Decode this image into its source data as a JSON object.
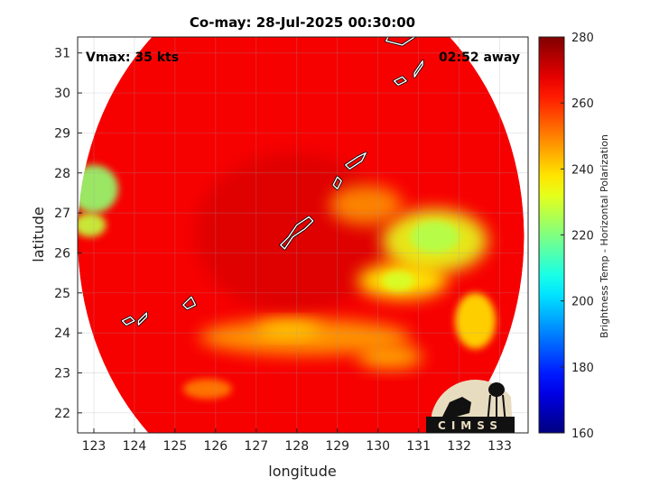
{
  "chart_data": {
    "type": "heatmap",
    "title": "Co-may: 28-Jul-2025 00:30:00",
    "annotations": {
      "vmax": "Vmax: 35 kts",
      "eta": "02:52 away"
    },
    "xlabel": "longitude",
    "ylabel": "latitude",
    "xlim": [
      122.6,
      133.7
    ],
    "ylim": [
      21.5,
      31.4
    ],
    "xticks": [
      123,
      124,
      125,
      126,
      127,
      128,
      129,
      130,
      131,
      132,
      133
    ],
    "yticks": [
      22,
      23,
      24,
      25,
      26,
      27,
      28,
      29,
      30,
      31
    ],
    "grid": true,
    "swath": {
      "center": [
        128.1,
        26.4
      ],
      "radius_deg": 5.5
    },
    "colorbar": {
      "label": "Brightness Temp - Horizontal Polarization",
      "range": [
        160,
        280
      ],
      "ticks": [
        160,
        180,
        200,
        220,
        240,
        260,
        280
      ],
      "colormap": "jet"
    },
    "features": [
      {
        "name": "warm-background",
        "lon": 128.0,
        "lat": 26.4,
        "rx": 5.5,
        "ry": 5.0,
        "temp": 264
      },
      {
        "name": "band-east",
        "lon": 131.4,
        "lat": 26.3,
        "rx": 1.3,
        "ry": 0.8,
        "temp": 232
      },
      {
        "name": "band-east-core",
        "lon": 131.4,
        "lat": 26.4,
        "rx": 0.6,
        "ry": 0.4,
        "temp": 226
      },
      {
        "name": "band-south-east",
        "lon": 130.6,
        "lat": 25.3,
        "rx": 1.1,
        "ry": 0.45,
        "temp": 236
      },
      {
        "name": "band-south-east-core",
        "lon": 130.5,
        "lat": 25.3,
        "rx": 0.4,
        "ry": 0.25,
        "temp": 230
      },
      {
        "name": "band-south",
        "lon": 128.2,
        "lat": 23.9,
        "rx": 2.6,
        "ry": 0.45,
        "temp": 246
      },
      {
        "name": "band-south-core",
        "lon": 127.8,
        "lat": 24.1,
        "rx": 0.8,
        "ry": 0.2,
        "temp": 240
      },
      {
        "name": "band-east-tail",
        "lon": 132.4,
        "lat": 24.3,
        "rx": 0.5,
        "ry": 0.7,
        "temp": 238
      },
      {
        "name": "west-edge-cell",
        "lon": 123.0,
        "lat": 27.6,
        "rx": 0.6,
        "ry": 0.6,
        "temp": 222
      },
      {
        "name": "west-edge-cell-2",
        "lon": 122.9,
        "lat": 26.7,
        "rx": 0.4,
        "ry": 0.3,
        "temp": 228
      },
      {
        "name": "north-east-cell",
        "lon": 129.7,
        "lat": 27.2,
        "rx": 0.9,
        "ry": 0.5,
        "temp": 248
      },
      {
        "name": "south-west-cell",
        "lon": 125.8,
        "lat": 22.6,
        "rx": 0.6,
        "ry": 0.25,
        "temp": 250
      },
      {
        "name": "south-cell",
        "lon": 130.3,
        "lat": 23.4,
        "rx": 0.8,
        "ry": 0.3,
        "temp": 244
      }
    ],
    "coastlines": [
      {
        "name": "okinawa",
        "points": [
          [
            127.7,
            26.1
          ],
          [
            127.9,
            26.4
          ],
          [
            128.2,
            26.6
          ],
          [
            128.4,
            26.8
          ],
          [
            128.3,
            26.9
          ],
          [
            128.0,
            26.7
          ],
          [
            127.8,
            26.4
          ],
          [
            127.6,
            26.2
          ]
        ]
      },
      {
        "name": "amami",
        "points": [
          [
            129.2,
            28.2
          ],
          [
            129.5,
            28.4
          ],
          [
            129.7,
            28.5
          ],
          [
            129.6,
            28.3
          ],
          [
            129.3,
            28.1
          ]
        ]
      },
      {
        "name": "tokunoshima",
        "points": [
          [
            128.9,
            27.7
          ],
          [
            129.0,
            27.9
          ],
          [
            129.1,
            27.8
          ],
          [
            129.0,
            27.6
          ]
        ]
      },
      {
        "name": "yakushima",
        "points": [
          [
            130.4,
            30.3
          ],
          [
            130.6,
            30.4
          ],
          [
            130.7,
            30.3
          ],
          [
            130.5,
            30.2
          ]
        ]
      },
      {
        "name": "tanegashima",
        "points": [
          [
            130.9,
            30.4
          ],
          [
            131.1,
            30.7
          ],
          [
            131.1,
            30.8
          ],
          [
            130.9,
            30.5
          ]
        ]
      },
      {
        "name": "kyushu-tip",
        "points": [
          [
            130.2,
            31.3
          ],
          [
            130.6,
            31.2
          ],
          [
            130.9,
            31.4
          ],
          [
            130.6,
            31.5
          ],
          [
            130.3,
            31.5
          ]
        ]
      },
      {
        "name": "ishigaki",
        "points": [
          [
            124.1,
            24.3
          ],
          [
            124.3,
            24.5
          ],
          [
            124.3,
            24.4
          ],
          [
            124.1,
            24.2
          ]
        ]
      },
      {
        "name": "iriomote",
        "points": [
          [
            123.7,
            24.3
          ],
          [
            123.9,
            24.4
          ],
          [
            124.0,
            24.3
          ],
          [
            123.8,
            24.2
          ]
        ]
      },
      {
        "name": "miyako",
        "points": [
          [
            125.2,
            24.7
          ],
          [
            125.4,
            24.9
          ],
          [
            125.5,
            24.7
          ],
          [
            125.3,
            24.6
          ]
        ]
      }
    ]
  },
  "logo": {
    "text": "CIMSS"
  }
}
